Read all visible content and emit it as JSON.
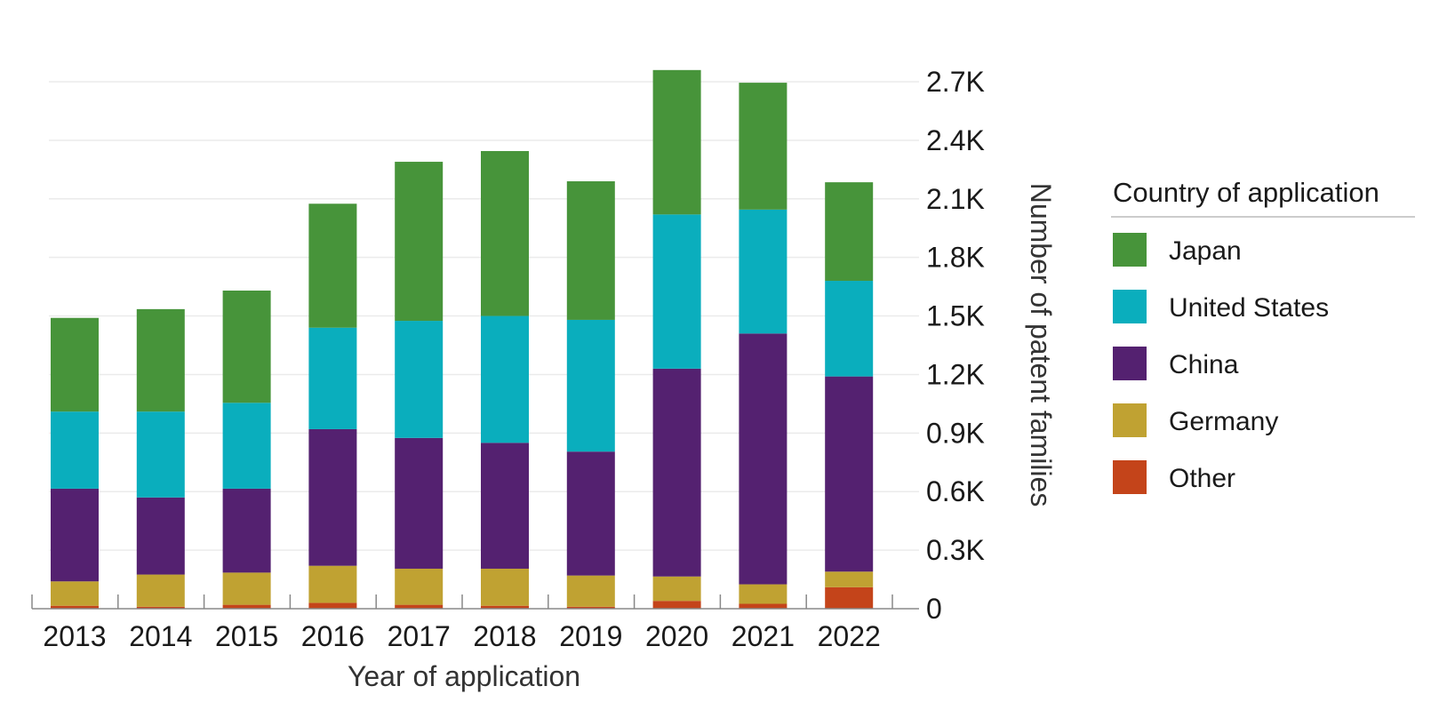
{
  "chart_data": {
    "type": "bar",
    "stacked": true,
    "categories": [
      "2013",
      "2014",
      "2015",
      "2016",
      "2017",
      "2018",
      "2019",
      "2020",
      "2021",
      "2022"
    ],
    "series": [
      {
        "name": "Other",
        "color": "#c4441a",
        "values": [
          15,
          10,
          20,
          30,
          20,
          15,
          10,
          40,
          25,
          110
        ]
      },
      {
        "name": "Germany",
        "color": "#c0a232",
        "values": [
          125,
          165,
          165,
          190,
          185,
          190,
          160,
          125,
          100,
          80
        ]
      },
      {
        "name": "China",
        "color": "#542170",
        "values": [
          475,
          395,
          430,
          700,
          670,
          645,
          635,
          1065,
          1285,
          1000
        ]
      },
      {
        "name": "United States",
        "color": "#0aaebd",
        "values": [
          395,
          440,
          440,
          520,
          600,
          650,
          675,
          790,
          635,
          490
        ]
      },
      {
        "name": "Japan",
        "color": "#47943a",
        "values": [
          480,
          525,
          575,
          635,
          815,
          845,
          710,
          740,
          650,
          505
        ]
      }
    ],
    "y_ticks": [
      "0",
      "0.3K",
      "0.6K",
      "0.9K",
      "1.2K",
      "1.5K",
      "1.8K",
      "2.1K",
      "2.4K",
      "2.7K"
    ],
    "ylim": [
      0,
      2700
    ],
    "xlabel": "Year of application",
    "ylabel": "Number of patent families",
    "y_axis_position": "right",
    "grid": true,
    "legend": {
      "title": "Country of application",
      "placement": "right",
      "items": [
        "Japan",
        "United States",
        "China",
        "Germany",
        "Other"
      ]
    }
  }
}
